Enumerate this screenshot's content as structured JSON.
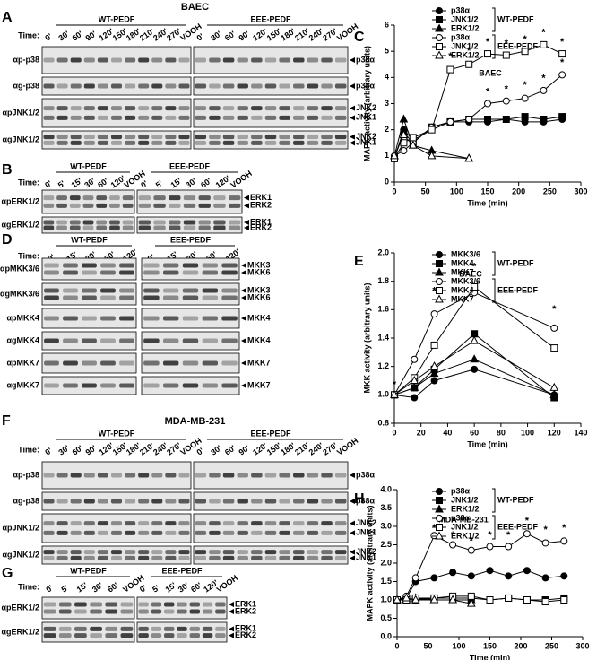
{
  "blots": [
    {
      "letter": "A",
      "title": "BAEC",
      "time_label": "Time:",
      "groups": [
        {
          "name": "WT-PEDF",
          "lanes": [
            "0'",
            "30'",
            "60'",
            "90'",
            "120'",
            "150'",
            "180'",
            "210'",
            "240'",
            "270'",
            "VOOH"
          ]
        },
        {
          "name": "EEE-PEDF",
          "lanes": [
            "0'",
            "30'",
            "60'",
            "90'",
            "120'",
            "150'",
            "180'",
            "210'",
            "240'",
            "270'",
            "VOOH"
          ]
        }
      ],
      "rows": [
        {
          "label": "αp-p38",
          "bands": [
            "p38α"
          ]
        },
        {
          "label": "αg-p38",
          "bands": [
            "p38α"
          ]
        },
        {
          "label": "αpJNK1/2",
          "bands": [
            "JNK2",
            "JNK1"
          ]
        },
        {
          "label": "αgJNK1/2",
          "bands": [
            "JNK2",
            "JNK1"
          ]
        }
      ]
    },
    {
      "letter": "B",
      "time_label": "Time:",
      "groups": [
        {
          "name": "WT-PEDF",
          "lanes": [
            "0'",
            "5'",
            "15'",
            "30'",
            "60'",
            "120'",
            "VOOH"
          ]
        },
        {
          "name": "EEE-PEDF",
          "lanes": [
            "0'",
            "5'",
            "15'",
            "30'",
            "60'",
            "120'",
            "VOOH"
          ]
        }
      ],
      "rows": [
        {
          "label": "αpERK1/2",
          "bands": [
            "ERK1",
            "ERK2"
          ]
        },
        {
          "label": "αgERK1/2",
          "bands": [
            "ERK1",
            "ERK2"
          ]
        }
      ]
    },
    {
      "letter": "D",
      "time_label": "Time:",
      "groups": [
        {
          "name": "WT-PEDF",
          "lanes": [
            "0'",
            "15'",
            "30'",
            "60'",
            "120'"
          ]
        },
        {
          "name": "EEE-PEDF",
          "lanes": [
            "0'",
            "15'",
            "30'",
            "60'",
            "120'"
          ]
        }
      ],
      "rows": [
        {
          "label": "αpMKK3/6",
          "bands": [
            "MKK3",
            "MKK6"
          ]
        },
        {
          "label": "αgMKK3/6",
          "bands": [
            "MKK3",
            "MKK6"
          ]
        },
        {
          "label": "αpMKK4",
          "bands": [
            "MKK4"
          ]
        },
        {
          "label": "αgMKK4",
          "bands": [
            "MKK4"
          ]
        },
        {
          "label": "αpMKK7",
          "bands": [
            "MKK7"
          ]
        },
        {
          "label": "αgMKK7",
          "bands": [
            "MKK7"
          ]
        }
      ]
    },
    {
      "letter": "F",
      "title": "MDA-MB-231",
      "time_label": "Time:",
      "groups": [
        {
          "name": "WT-PEDF",
          "lanes": [
            "0'",
            "30'",
            "60'",
            "90'",
            "120'",
            "150'",
            "180'",
            "210'",
            "240'",
            "270'",
            "VOOH"
          ]
        },
        {
          "name": "EEE-PEDF",
          "lanes": [
            "0'",
            "30'",
            "60'",
            "90'",
            "120'",
            "150'",
            "180'",
            "210'",
            "240'",
            "270'",
            "VOOH"
          ]
        }
      ],
      "rows": [
        {
          "label": "αp-p38",
          "bands": [
            "p38α"
          ]
        },
        {
          "label": "αg-p38",
          "bands": [
            "p38α"
          ]
        },
        {
          "label": "αpJNK1/2",
          "bands": [
            "JNK2",
            "JNK1"
          ]
        },
        {
          "label": "αgJNK1/2",
          "bands": [
            "JNK2",
            "JNK1"
          ]
        }
      ]
    },
    {
      "letter": "G",
      "time_label": "Time:",
      "groups": [
        {
          "name": "WT-PEDF",
          "lanes": [
            "0'",
            "5'",
            "15'",
            "30'",
            "60'",
            "VOOH"
          ]
        },
        {
          "name": "EEE-PEDF",
          "lanes": [
            "0'",
            "5'",
            "15'",
            "30'",
            "60'",
            "120'",
            "VOOH"
          ]
        }
      ],
      "rows": [
        {
          "label": "αpERK1/2",
          "bands": [
            "ERK1",
            "ERK2"
          ]
        },
        {
          "label": "αgERK1/2",
          "bands": [
            "ERK1",
            "ERK2"
          ]
        }
      ]
    }
  ],
  "chart_data": [
    {
      "type": "line",
      "panel_label": "C",
      "title": "BAEC",
      "x_label": "Time (min)",
      "y_label": "MAPK activity (arbitrary units)",
      "xlim": [
        0,
        300
      ],
      "xticks": [
        0,
        50,
        100,
        150,
        200,
        250,
        300
      ],
      "ylim": [
        0,
        6
      ],
      "yticks": [
        0,
        1,
        2,
        3,
        4,
        5,
        6
      ],
      "legend_groups": [
        "WT-PEDF",
        "EEE-PEDF"
      ],
      "series": [
        {
          "name": "p38α",
          "marker": "circle",
          "filled": true,
          "color": "#000",
          "x": [
            0,
            15,
            30,
            60,
            90,
            120,
            150,
            180,
            210,
            240,
            270
          ],
          "values": [
            0.9,
            2.0,
            1.6,
            2.0,
            2.3,
            2.3,
            2.3,
            2.4,
            2.3,
            2.3,
            2.4
          ]
        },
        {
          "name": "JNK1/2",
          "marker": "square",
          "filled": true,
          "color": "#000",
          "x": [
            0,
            15,
            30,
            60,
            90,
            120,
            150,
            180,
            210,
            240,
            270
          ],
          "values": [
            0.9,
            1.9,
            1.5,
            2.1,
            2.3,
            2.4,
            2.4,
            2.4,
            2.5,
            2.4,
            2.5
          ]
        },
        {
          "name": "ERK1/2",
          "marker": "triangle",
          "filled": true,
          "color": "#000",
          "x": [
            0,
            15,
            30,
            60,
            120
          ],
          "values": [
            1.0,
            2.4,
            1.4,
            1.2,
            0.9
          ]
        },
        {
          "name": "p38α",
          "marker": "circle",
          "filled": false,
          "color": "#000",
          "x": [
            0,
            15,
            30,
            60,
            90,
            120,
            150,
            180,
            210,
            240,
            270
          ],
          "values": [
            1.0,
            1.2,
            1.5,
            2.1,
            2.3,
            2.4,
            3.0,
            3.1,
            3.2,
            3.5,
            4.1
          ]
        },
        {
          "name": "JNK1/2",
          "marker": "square",
          "filled": false,
          "color": "#000",
          "x": [
            0,
            15,
            30,
            60,
            90,
            120,
            150,
            180,
            210,
            240,
            270
          ],
          "values": [
            0.9,
            1.5,
            1.7,
            2.0,
            4.3,
            4.5,
            4.9,
            4.85,
            5.0,
            5.25,
            4.9
          ]
        },
        {
          "name": "ERK1/2",
          "marker": "triangle",
          "filled": false,
          "color": "#000",
          "x": [
            0,
            15,
            30,
            60,
            120
          ],
          "values": [
            1.0,
            1.8,
            1.4,
            1.0,
            0.9
          ]
        }
      ],
      "annotations": [
        {
          "text": "*",
          "x": 90,
          "y": 4.8
        },
        {
          "text": "*",
          "x": 120,
          "y": 5.0
        },
        {
          "text": "*",
          "x": 150,
          "y": 5.35
        },
        {
          "text": "*",
          "x": 180,
          "y": 5.3
        },
        {
          "text": "*",
          "x": 210,
          "y": 5.45
        },
        {
          "text": "*",
          "x": 240,
          "y": 5.7
        },
        {
          "text": "*",
          "x": 270,
          "y": 5.35
        },
        {
          "text": "*",
          "x": 150,
          "y": 3.45
        },
        {
          "text": "*",
          "x": 180,
          "y": 3.55
        },
        {
          "text": "*",
          "x": 210,
          "y": 3.7
        },
        {
          "text": "*",
          "x": 240,
          "y": 3.95
        },
        {
          "text": "*",
          "x": 270,
          "y": 4.55
        }
      ]
    },
    {
      "type": "line",
      "panel_label": "E",
      "title": "BAEC",
      "x_label": "Time (min)",
      "y_label": "MKK activity (arbitrary units)",
      "xlim": [
        0,
        140
      ],
      "xticks": [
        0,
        20,
        40,
        60,
        80,
        100,
        120,
        140
      ],
      "ylim": [
        0.8,
        2.0
      ],
      "yticks": [
        0.8,
        {
          "value": 1.0,
          "label": "1.0"
        },
        1.2,
        1.4,
        1.6,
        1.8,
        {
          "value": 2.0,
          "label": "2.0"
        }
      ],
      "legend_groups": [
        "WT-PEDF",
        "EEE-PEDF"
      ],
      "series": [
        {
          "name": "MKK3/6",
          "marker": "circle",
          "filled": true,
          "color": "#000",
          "x": [
            0,
            15,
            30,
            60,
            120
          ],
          "values": [
            1.0,
            0.98,
            1.1,
            1.18,
            1.0
          ]
        },
        {
          "name": "MKK4",
          "marker": "square",
          "filled": true,
          "color": "#000",
          "x": [
            0,
            15,
            30,
            60,
            120
          ],
          "values": [
            1.0,
            1.05,
            1.18,
            1.43,
            0.98
          ]
        },
        {
          "name": "MKK7",
          "marker": "triangle",
          "filled": true,
          "color": "#000",
          "x": [
            0,
            15,
            30,
            60,
            120
          ],
          "values": [
            1.0,
            1.05,
            1.15,
            1.25,
            1.0
          ]
        },
        {
          "name": "MKK3/6",
          "marker": "circle",
          "filled": false,
          "color": "#000",
          "x": [
            0,
            15,
            30,
            60,
            120
          ],
          "values": [
            1.0,
            1.25,
            1.57,
            1.72,
            1.47
          ]
        },
        {
          "name": "MKK4",
          "marker": "square",
          "filled": false,
          "color": "#000",
          "x": [
            0,
            15,
            30,
            60,
            120
          ],
          "values": [
            1.0,
            1.12,
            1.35,
            1.76,
            1.33
          ]
        },
        {
          "name": "MKK7",
          "marker": "triangle",
          "filled": false,
          "color": "#000",
          "x": [
            0,
            15,
            30,
            60,
            120
          ],
          "values": [
            1.0,
            1.1,
            1.2,
            1.38,
            1.05
          ]
        }
      ],
      "annotations": [
        {
          "text": "*",
          "x": 0,
          "y": 1.07
        },
        {
          "text": "*",
          "x": 30,
          "y": 1.73
        },
        {
          "text": "*",
          "x": 60,
          "y": 1.9
        },
        {
          "text": "*",
          "x": 120,
          "y": 1.6
        }
      ]
    },
    {
      "type": "line",
      "panel_label": "H",
      "title": "MDA-MB-231",
      "x_label": "Time (min)",
      "y_label": "MAPK activity (arbitrary units)",
      "xlim": [
        0,
        300
      ],
      "xticks": [
        0,
        50,
        100,
        150,
        200,
        250,
        300
      ],
      "ylim": [
        0,
        4
      ],
      "yticks": [
        {
          "value": 0,
          "label": "0.0"
        },
        0.5,
        {
          "value": 1,
          "label": "1.0"
        },
        1.5,
        {
          "value": 2,
          "label": "2.0"
        },
        2.5,
        {
          "value": 3,
          "label": "3.0"
        },
        3.5,
        {
          "value": 4,
          "label": "4.0"
        }
      ],
      "legend_groups": [
        "WT-PEDF",
        "EEE-PEDF"
      ],
      "series": [
        {
          "name": "p38α",
          "marker": "circle",
          "filled": true,
          "color": "#000",
          "x": [
            0,
            15,
            30,
            60,
            90,
            120,
            150,
            180,
            210,
            240,
            270
          ],
          "values": [
            1.0,
            1.05,
            1.5,
            1.6,
            1.75,
            1.65,
            1.8,
            1.65,
            1.8,
            1.6,
            1.65
          ]
        },
        {
          "name": "JNK1/2",
          "marker": "square",
          "filled": true,
          "color": "#000",
          "x": [
            0,
            15,
            30,
            60,
            90,
            120,
            150,
            180,
            210,
            240,
            270
          ],
          "values": [
            1.0,
            1.05,
            1.0,
            1.05,
            1.05,
            1.05,
            1.0,
            1.05,
            1.0,
            1.0,
            1.05
          ]
        },
        {
          "name": "ERK1/2",
          "marker": "triangle",
          "filled": true,
          "color": "#000",
          "x": [
            0,
            15,
            30,
            60,
            90,
            120
          ],
          "values": [
            1.0,
            1.0,
            1.05,
            1.0,
            1.0,
            1.0
          ]
        },
        {
          "name": "p38α",
          "marker": "circle",
          "filled": false,
          "color": "#000",
          "x": [
            0,
            15,
            30,
            60,
            90,
            120,
            150,
            180,
            210,
            240,
            270
          ],
          "values": [
            1.0,
            1.1,
            1.6,
            2.75,
            2.5,
            2.35,
            2.45,
            2.45,
            2.8,
            2.55,
            2.6
          ]
        },
        {
          "name": "JNK1/2",
          "marker": "square",
          "filled": false,
          "color": "#000",
          "x": [
            0,
            15,
            30,
            60,
            90,
            120,
            150,
            180,
            210,
            240,
            270
          ],
          "values": [
            1.0,
            1.0,
            1.05,
            1.05,
            1.1,
            1.1,
            1.0,
            1.05,
            1.0,
            0.95,
            1.0
          ]
        },
        {
          "name": "ERK1/2",
          "marker": "triangle",
          "filled": false,
          "color": "#000",
          "x": [
            0,
            15,
            30,
            60,
            90,
            120
          ],
          "values": [
            1.0,
            1.05,
            1.0,
            1.0,
            1.0,
            0.9
          ]
        }
      ],
      "annotations": [
        {
          "text": "*",
          "x": 60,
          "y": 2.95
        },
        {
          "text": "*",
          "x": 90,
          "y": 2.75
        },
        {
          "text": "*",
          "x": 120,
          "y": 2.6
        },
        {
          "text": "*",
          "x": 150,
          "y": 2.75
        },
        {
          "text": "*",
          "x": 180,
          "y": 2.75
        },
        {
          "text": "*",
          "x": 210,
          "y": 3.15
        },
        {
          "text": "*",
          "x": 240,
          "y": 2.9
        },
        {
          "text": "*",
          "x": 270,
          "y": 2.95
        }
      ]
    }
  ]
}
